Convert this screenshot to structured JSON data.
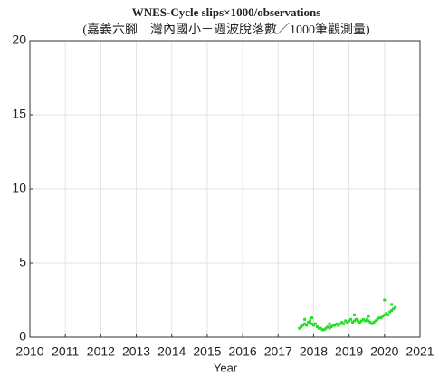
{
  "chart_data": {
    "type": "scatter",
    "title": "WNES-Cycle slips×1000/observations",
    "subtitle": "(嘉義六腳　灣內國小－週波脫落數／1000筆觀測量)",
    "x_label": "Year",
    "color": "#22dd22",
    "grid": true,
    "xlim": [
      2010,
      2021
    ],
    "xticks": [
      2010,
      2011,
      2012,
      2013,
      2014,
      2015,
      2016,
      2017,
      2018,
      2019,
      2020,
      2021
    ],
    "ylim": [
      0,
      20
    ],
    "yticks": [
      0,
      5,
      10,
      15,
      20
    ],
    "x": [
      2017.6,
      2017.65,
      2017.7,
      2017.75,
      2017.8,
      2017.85,
      2017.9,
      2017.95,
      2018.0,
      2018.05,
      2018.1,
      2018.15,
      2018.2,
      2018.25,
      2018.3,
      2018.35,
      2018.4,
      2018.45,
      2018.5,
      2018.55,
      2018.6,
      2018.65,
      2018.7,
      2018.75,
      2018.8,
      2018.85,
      2018.9,
      2018.95,
      2019.0,
      2019.05,
      2019.1,
      2019.15,
      2019.2,
      2019.25,
      2019.3,
      2019.35,
      2019.4,
      2019.45,
      2019.5,
      2019.55,
      2019.6,
      2019.65,
      2019.7,
      2019.75,
      2019.8,
      2019.85,
      2019.9,
      2019.95,
      2020.0,
      2020.05,
      2020.1,
      2020.15,
      2020.2,
      2020.25,
      2020.3,
      2017.75,
      2017.95,
      2018.45,
      2019.15,
      2019.55,
      2020.0,
      2020.2
    ],
    "values": [
      0.6,
      0.7,
      0.8,
      0.9,
      0.8,
      1.0,
      1.1,
      0.9,
      0.8,
      0.9,
      0.7,
      0.6,
      0.6,
      0.5,
      0.5,
      0.6,
      0.7,
      0.6,
      0.7,
      0.8,
      0.8,
      0.9,
      0.8,
      0.9,
      1.0,
      0.9,
      1.1,
      1.0,
      1.1,
      1.2,
      1.0,
      1.1,
      1.2,
      1.1,
      1.0,
      1.1,
      1.2,
      1.1,
      1.2,
      1.1,
      1.0,
      0.9,
      1.0,
      1.1,
      1.2,
      1.3,
      1.3,
      1.4,
      1.5,
      1.6,
      1.5,
      1.7,
      1.8,
      1.9,
      2.0,
      1.2,
      1.3,
      0.9,
      1.5,
      1.4,
      2.5,
      2.2
    ]
  }
}
